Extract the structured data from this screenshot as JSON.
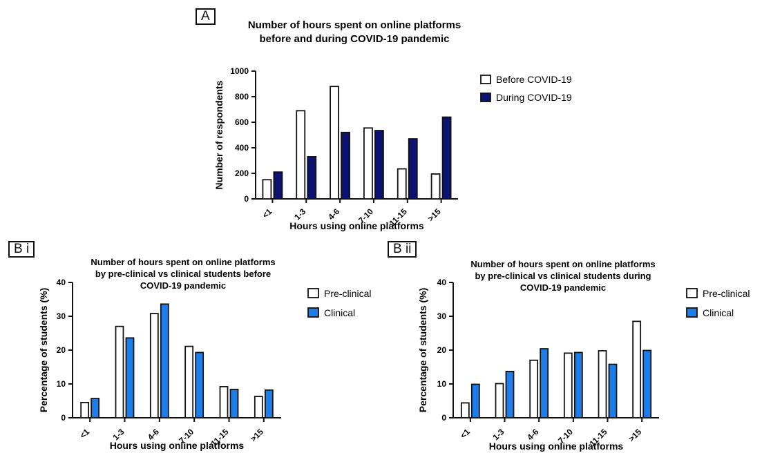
{
  "chart_data": [
    {
      "panel": "A",
      "type": "bar",
      "title": [
        "Number of hours spent on online platforms",
        "before and during COVID-19 pandemic"
      ],
      "xlabel": "Hours using online platforms",
      "ylabel": "Number of respondents",
      "categories": [
        "<1",
        "1-3",
        "4-6",
        "7-10",
        "11-15",
        ">15"
      ],
      "ylim": [
        0,
        1000
      ],
      "yticks": [
        0,
        200,
        400,
        600,
        800,
        1000
      ],
      "series": [
        {
          "name": "Before COVID-19",
          "values": [
            150,
            690,
            880,
            555,
            235,
            195
          ],
          "color": "#ffffff"
        },
        {
          "name": "During COVID-19",
          "values": [
            210,
            330,
            520,
            535,
            470,
            640
          ],
          "color": "#0d1170"
        }
      ],
      "legend": "right"
    },
    {
      "panel": "B i",
      "type": "bar",
      "title": [
        "Number of hours spent on online platforms",
        "by pre-clinical vs clinical students before",
        "COVID-19 pandemic"
      ],
      "xlabel": "Hours using online platforms",
      "ylabel": "Percentage of students (%)",
      "categories": [
        "<1",
        "1-3",
        "4-6",
        "7-10",
        "11-15",
        ">15"
      ],
      "ylim": [
        0,
        40
      ],
      "yticks": [
        0,
        10,
        20,
        30,
        40
      ],
      "series": [
        {
          "name": "Pre-clinical",
          "values": [
            4.5,
            27.0,
            30.8,
            21.1,
            9.2,
            6.3
          ],
          "color": "#ffffff"
        },
        {
          "name": "Clinical",
          "values": [
            5.7,
            23.6,
            33.6,
            19.3,
            8.4,
            8.2
          ],
          "color": "#1e7de6"
        }
      ],
      "legend": "right"
    },
    {
      "panel": "B ii",
      "type": "bar",
      "title": [
        "Number of hours spent on online platforms",
        "by pre-clinical vs clinical students during",
        "COVID-19 pandemic"
      ],
      "xlabel": "Hours using online platforms",
      "ylabel": "Percentage of students (%)",
      "categories": [
        "<1",
        "1-3",
        "4-6",
        "7-10",
        "11-15",
        ">15"
      ],
      "ylim": [
        0,
        40
      ],
      "yticks": [
        0,
        10,
        20,
        30,
        40
      ],
      "series": [
        {
          "name": "Pre-clinical",
          "values": [
            4.4,
            10.1,
            17.0,
            19.1,
            19.8,
            28.5
          ],
          "color": "#ffffff"
        },
        {
          "name": "Clinical",
          "values": [
            9.9,
            13.7,
            20.4,
            19.3,
            15.8,
            19.9
          ],
          "color": "#1e7de6"
        }
      ],
      "legend": "right"
    }
  ]
}
